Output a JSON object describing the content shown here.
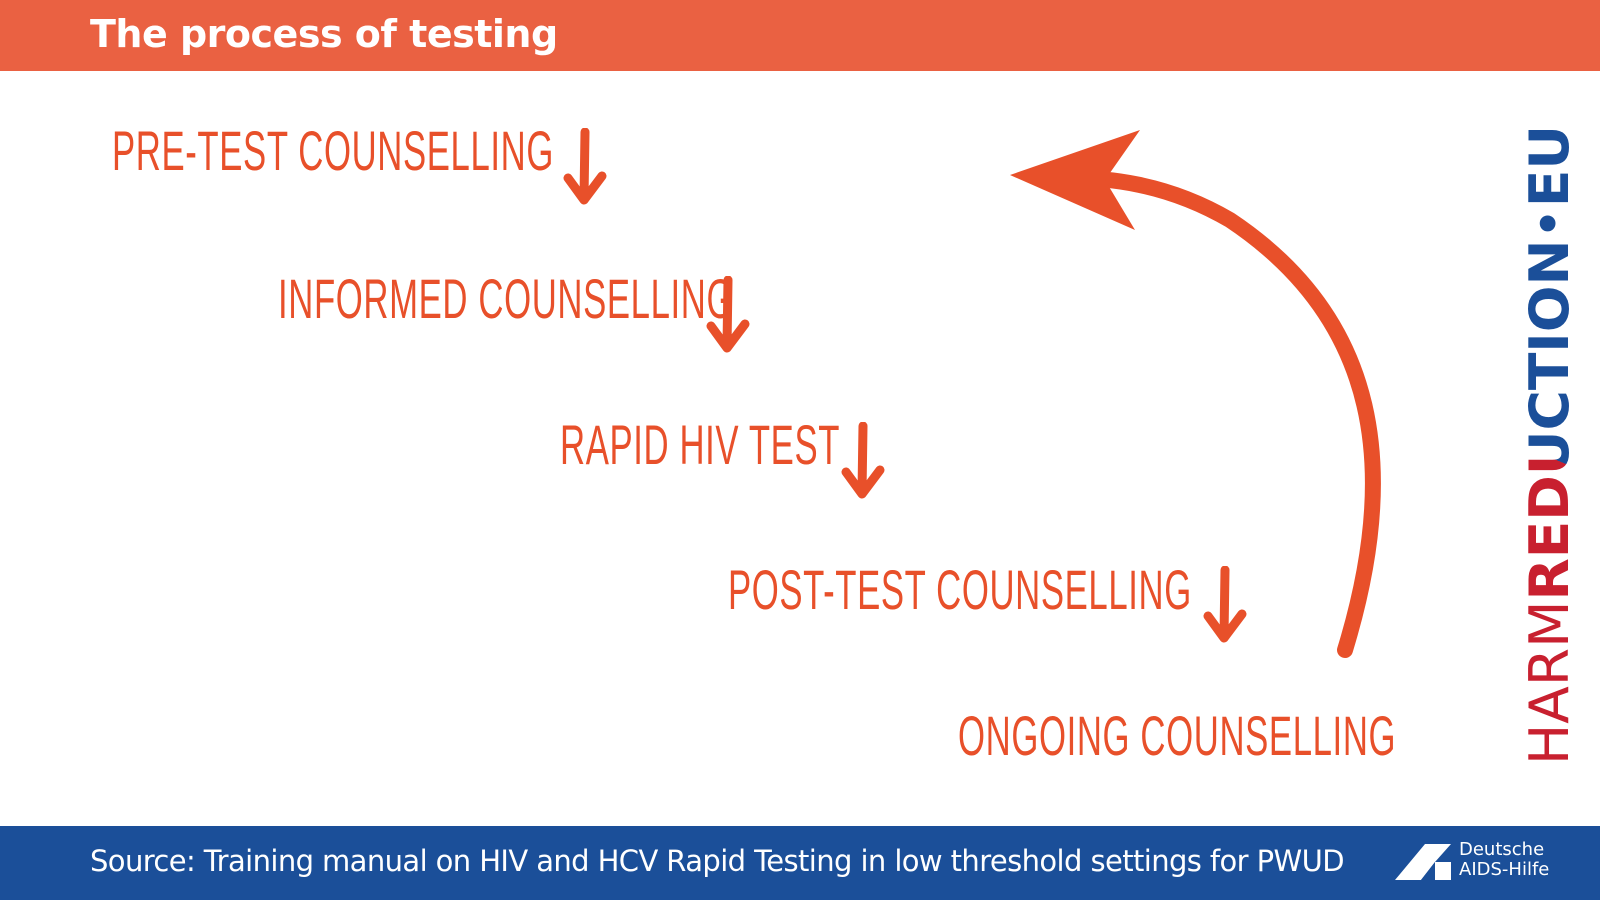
{
  "header": {
    "title": "The process of testing"
  },
  "steps": [
    {
      "label": "PRE-TEST COUNSELLING"
    },
    {
      "label": "INFORMED COUNSELLING"
    },
    {
      "label": "RAPID HIV TEST"
    },
    {
      "label": "POST-TEST COUNSELLING"
    },
    {
      "label": "ONGOING COUNSELLING"
    }
  ],
  "logo": {
    "part1": "HARM",
    "part2": "REDUCTION",
    "dot": "•",
    "part3": "EU"
  },
  "footer": {
    "source": "Source: Training manual on HIV and HCV Rapid Testing in low threshold settings for PWUD",
    "org_line1": "Deutsche",
    "org_line2": "AIDS-Hilfe"
  },
  "colors": {
    "header": "#EA6142",
    "footer": "#1B4F99",
    "accent": "#E8502A",
    "logo_red": "#C8202F",
    "logo_blue": "#1B4F99"
  }
}
